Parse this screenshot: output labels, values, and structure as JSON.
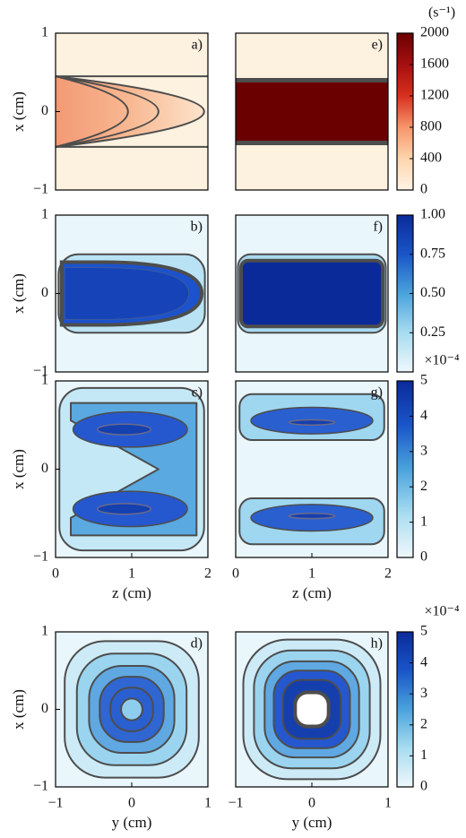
{
  "chart_data": [
    {
      "type": "heatmap",
      "label": "a)",
      "xlim": [
        0,
        2
      ],
      "ylim": [
        -1,
        1
      ],
      "yticks": [
        {
          "value": -1,
          "label": "−1"
        },
        0,
        1
      ],
      "ylabel": "x (cm)"
    },
    {
      "type": "heatmap",
      "label": "b)",
      "xlim": [
        0,
        2
      ],
      "ylim": [
        -1,
        1
      ],
      "yticks": [
        {
          "value": -1,
          "label": "−1"
        },
        0,
        1
      ],
      "ylabel": "x (cm)"
    },
    {
      "type": "heatmap",
      "label": "c)",
      "xlim": [
        0,
        2
      ],
      "ylim": [
        -1,
        1
      ],
      "yticks": [
        {
          "value": -1,
          "label": "−1"
        },
        0,
        1
      ],
      "ylabel": "x (cm)",
      "xticks": [
        0,
        1,
        2
      ],
      "xlabel": "z (cm)"
    },
    {
      "type": "heatmap",
      "label": "d)",
      "xlim": [
        -1,
        1
      ],
      "ylim": [
        -1,
        1
      ],
      "yticks": [
        {
          "value": -1,
          "label": "−1"
        },
        0,
        1
      ],
      "ylabel": "x (cm)",
      "xticks": [
        {
          "value": -1,
          "label": "−1"
        },
        0,
        1
      ],
      "xlabel": "y (cm)"
    },
    {
      "type": "heatmap",
      "label": "e)",
      "xlim": [
        0,
        2
      ],
      "ylim": [
        -1,
        1
      ]
    },
    {
      "type": "heatmap",
      "label": "f)",
      "xlim": [
        0,
        2
      ],
      "ylim": [
        -1,
        1
      ]
    },
    {
      "type": "heatmap",
      "label": "g)",
      "xlim": [
        0,
        2
      ],
      "ylim": [
        -1,
        1
      ],
      "xticks": [
        0,
        1,
        2
      ],
      "xlabel": "z (cm)"
    },
    {
      "type": "heatmap",
      "label": "h)",
      "xlim": [
        -1,
        1
      ],
      "ylim": [
        -1,
        1
      ],
      "xticks": [
        {
          "value": -1,
          "label": "−1"
        },
        0,
        1
      ],
      "xlabel": "y (cm)"
    },
    {
      "type": "colorbar",
      "title": "(s⁻¹)",
      "ylim": [
        0,
        2000
      ],
      "yticks": [
        0,
        400,
        800,
        1200,
        1600,
        2000
      ],
      "colors": [
        "#fff4e6",
        "#fdd5ad",
        "#f7956b",
        "#d7301f",
        "#a50f0f",
        "#6b0000"
      ]
    },
    {
      "type": "colorbar",
      "ylim": [
        0,
        1
      ],
      "yticks": [
        {
          "value": 0.25,
          "label": "0.25"
        },
        {
          "value": 0.5,
          "label": "0.50"
        },
        {
          "value": 0.75,
          "label": "0.75"
        },
        {
          "value": 1,
          "label": "1.00"
        }
      ],
      "colors": [
        "#eef8fc",
        "#a8dcf0",
        "#4aa3dc",
        "#1a55c8",
        "#0b2a9a"
      ]
    },
    {
      "type": "colorbar",
      "title": "×10⁻⁴",
      "ylim": [
        0,
        5
      ],
      "yticks": [
        0,
        1,
        2,
        3,
        4,
        5
      ],
      "colors": [
        "#eef8fc",
        "#a8dcf0",
        "#4aa3dc",
        "#1a55c8",
        "#0b2a9a"
      ]
    },
    {
      "type": "colorbar",
      "title": "×10⁻⁴",
      "ylim": [
        0,
        5
      ],
      "yticks": [
        0,
        1,
        2,
        3,
        4,
        5
      ],
      "colors": [
        "#eef8fc",
        "#a8dcf0",
        "#4aa3dc",
        "#1a55c8",
        "#0b2a9a"
      ]
    }
  ]
}
